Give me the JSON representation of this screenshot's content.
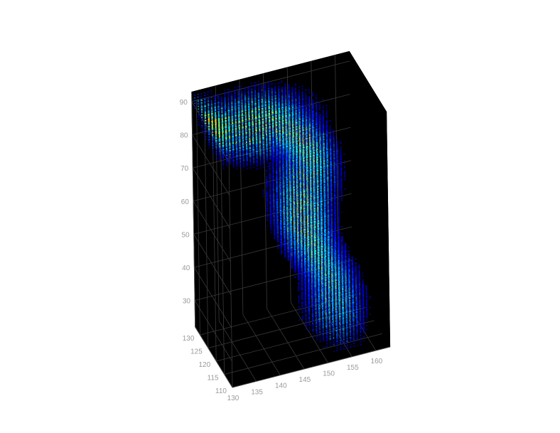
{
  "chart_data": {
    "type": "heatmap",
    "subtype": "3d-voxel-scatter",
    "title": "",
    "xlabel": "",
    "ylabel": "",
    "zlabel": "",
    "background": "#000000",
    "colormap": "jet",
    "colormap_stops": [
      "#00008f",
      "#0000ff",
      "#0080ff",
      "#00ffff",
      "#80ff80",
      "#ffff00",
      "#ff8000",
      "#ff0000"
    ],
    "axes": {
      "x": {
        "lim": [
          130,
          163
        ],
        "ticks": [
          130,
          135,
          140,
          145,
          150,
          155,
          160
        ],
        "labels": [
          "130",
          "135",
          "140",
          "145",
          "150",
          "155",
          "160"
        ]
      },
      "y": {
        "lim": [
          110,
          133
        ],
        "ticks": [
          110,
          115,
          120,
          125,
          130
        ],
        "labels": [
          "110",
          "115",
          "120",
          "125",
          "130"
        ]
      },
      "z": {
        "lim": [
          22,
          93
        ],
        "ticks": [
          30,
          40,
          50,
          60,
          70,
          80,
          90
        ],
        "labels": [
          "30",
          "40",
          "50",
          "60",
          "70",
          "80",
          "90"
        ]
      }
    },
    "grid": true,
    "ridge_path": [
      {
        "x": 130.0,
        "z": 90.0,
        "intensity": 0.78
      },
      {
        "x": 142.0,
        "z": 87.5,
        "intensity": 0.84
      },
      {
        "x": 147.5,
        "z": 84.0,
        "intensity": 0.82
      },
      {
        "x": 150.0,
        "z": 79.0,
        "intensity": 0.8
      },
      {
        "x": 150.5,
        "z": 73.0,
        "intensity": 0.7
      },
      {
        "x": 149.5,
        "z": 66.0,
        "intensity": 0.74
      },
      {
        "x": 149.0,
        "z": 60.0,
        "intensity": 0.8
      },
      {
        "x": 149.5,
        "z": 53.0,
        "intensity": 0.82
      },
      {
        "x": 151.0,
        "z": 47.0,
        "intensity": 0.68
      },
      {
        "x": 153.5,
        "z": 41.0,
        "intensity": 0.64
      },
      {
        "x": 155.0,
        "z": 35.0,
        "intensity": 0.66
      },
      {
        "x": 155.5,
        "z": 30.0,
        "intensity": 0.62
      },
      {
        "x": 155.0,
        "z": 25.0,
        "intensity": 0.5
      }
    ]
  }
}
